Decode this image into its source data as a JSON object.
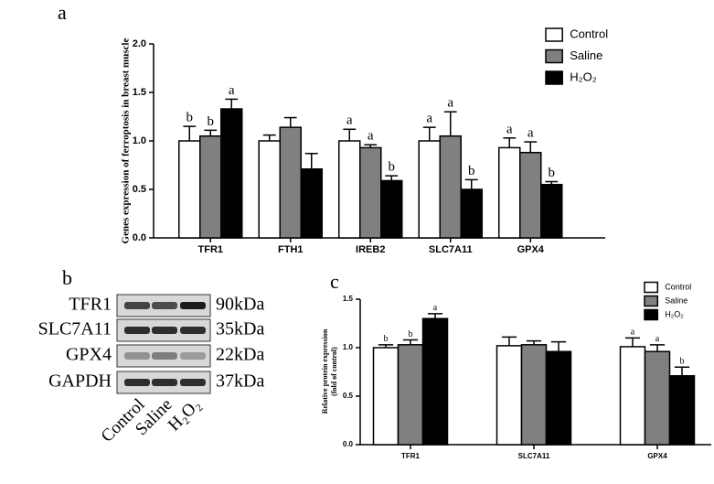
{
  "chart_data": [
    {
      "type": "bar",
      "panel": "a",
      "ylabel": "Genes expression of ferroptosis in breast muscle",
      "categories": [
        "TFR1",
        "FTH1",
        "IREB2",
        "SLC7A11",
        "GPX4"
      ],
      "series": [
        {
          "name": "Control",
          "color": "#ffffff",
          "values": [
            1.0,
            1.0,
            1.0,
            1.0,
            0.93
          ],
          "errors": [
            0.15,
            0.06,
            0.12,
            0.14,
            0.1
          ],
          "letters": [
            "b",
            null,
            "a",
            "a",
            "a"
          ]
        },
        {
          "name": "Saline",
          "color": "#808080",
          "values": [
            1.05,
            1.14,
            0.93,
            1.05,
            0.88
          ],
          "errors": [
            0.06,
            0.1,
            0.03,
            0.25,
            0.11
          ],
          "letters": [
            "b",
            null,
            "a",
            "a",
            "a"
          ]
        },
        {
          "name": "H₂O₂",
          "color": "#000000",
          "values": [
            1.33,
            0.71,
            0.59,
            0.5,
            0.55
          ],
          "errors": [
            0.1,
            0.16,
            0.05,
            0.1,
            0.03
          ],
          "letters": [
            "a",
            null,
            "b",
            "b",
            "b"
          ]
        }
      ],
      "ylim": [
        0,
        2.0
      ],
      "yticks": [
        {
          "value": 0,
          "label": "0.0"
        },
        0.5,
        {
          "value": 1,
          "label": "1.0"
        },
        1.5,
        {
          "value": 2,
          "label": "2.0"
        }
      ],
      "legend": "top-right"
    },
    {
      "type": "bar",
      "panel": "c",
      "ylabel": [
        "Relative protein expression",
        "(fold of control)"
      ],
      "categories": [
        "TFR1",
        "SLC7A11",
        "GPX4"
      ],
      "series": [
        {
          "name": "Control",
          "color": "#ffffff",
          "values": [
            1.0,
            1.02,
            1.01
          ],
          "errors": [
            0.03,
            0.09,
            0.09
          ],
          "letters": [
            "b",
            null,
            "a"
          ]
        },
        {
          "name": "Saline",
          "color": "#808080",
          "values": [
            1.03,
            1.03,
            0.96
          ],
          "errors": [
            0.05,
            0.04,
            0.07
          ],
          "letters": [
            "b",
            null,
            "a"
          ]
        },
        {
          "name": "H₂O₂",
          "color": "#000000",
          "values": [
            1.3,
            0.96,
            0.71
          ],
          "errors": [
            0.05,
            0.1,
            0.09
          ],
          "letters": [
            "a",
            null,
            "b"
          ]
        }
      ],
      "ylim": [
        0,
        1.5
      ],
      "yticks": [
        {
          "value": 0,
          "label": "0.0"
        },
        0.5,
        {
          "value": 1,
          "label": "1.0"
        },
        1.5
      ],
      "legend": "top-right"
    }
  ],
  "blot": {
    "panel": "b",
    "rows": [
      {
        "protein": "TFR1",
        "size": "90kDa"
      },
      {
        "protein": "SLC7A11",
        "size": "35kDa"
      },
      {
        "protein": "GPX4",
        "size": "22kDa"
      },
      {
        "protein": "GAPDH",
        "size": "37kDa"
      }
    ],
    "lanes": [
      "Control",
      "Saline",
      "H₂O₂"
    ]
  }
}
